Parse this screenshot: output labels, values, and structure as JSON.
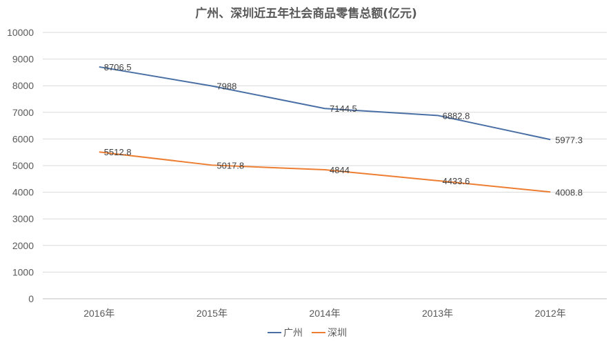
{
  "chart_data": {
    "type": "line",
    "title": "广州、深圳近五年社会商品零售总额(亿元)",
    "categories": [
      "2016年",
      "2015年",
      "2014年",
      "2013年",
      "2012年"
    ],
    "series": [
      {
        "name": "广州",
        "color": "#4a6fa5",
        "values": [
          8706.5,
          7988,
          7144.5,
          6882.8,
          5977.3
        ],
        "labels": [
          "8706.5",
          "7988",
          "7144.5",
          "6882.8",
          "5977.3"
        ]
      },
      {
        "name": "深圳",
        "color": "#ed7d31",
        "values": [
          5512.8,
          5017.8,
          4844,
          4433.6,
          4008.8
        ],
        "labels": [
          "5512.8",
          "5017.8",
          "4844",
          "4433.6",
          "4008.8"
        ]
      }
    ],
    "ylim": [
      0,
      10000
    ],
    "yticks": [
      "0",
      "1000",
      "2000",
      "3000",
      "4000",
      "5000",
      "6000",
      "7000",
      "8000",
      "9000",
      "10000"
    ],
    "grid": true,
    "legend": "bottom-center"
  }
}
